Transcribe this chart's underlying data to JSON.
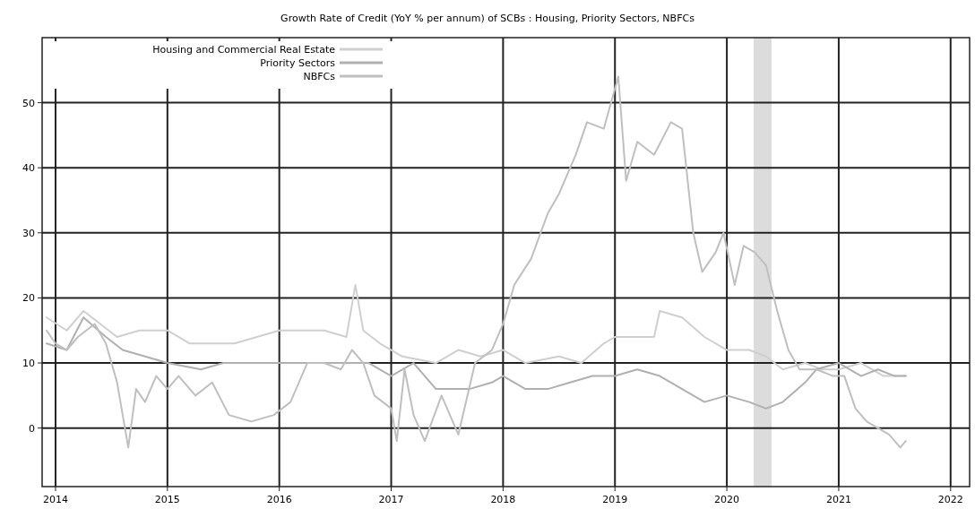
{
  "chart_data": {
    "type": "line",
    "title": "Growth Rate of Credit (YoY % per annum) of SCBs : Housing, Priority Sectors, NBFCs",
    "xlim": [
      2013.88,
      2022.17
    ],
    "xticks": [
      2014,
      2015,
      2016,
      2017,
      2018,
      2019,
      2020,
      2021,
      2022
    ],
    "ylim": [
      -9,
      60
    ],
    "yticks": [
      0,
      10,
      20,
      30,
      40,
      50
    ],
    "grid": true,
    "legend": "top left",
    "line_style": "solid",
    "bands": [
      {
        "axis": "x",
        "from": 2020.24,
        "to": 2020.4,
        "color": "#dcdcdc"
      }
    ],
    "series": [
      {
        "name": "Housing and Commercial Real Estate",
        "color": "#cfcfcf",
        "x": [
          2013.92,
          2014.1,
          2014.25,
          2014.4,
          2014.55,
          2014.75,
          2015.0,
          2015.2,
          2015.6,
          2015.8,
          2016.0,
          2016.4,
          2016.6,
          2016.68,
          2016.75,
          2016.9,
          2017.1,
          2017.4,
          2017.6,
          2017.8,
          2018.0,
          2018.2,
          2018.5,
          2018.7,
          2018.9,
          2019.0,
          2019.2,
          2019.35,
          2019.4,
          2019.6,
          2019.8,
          2020.0,
          2020.2,
          2020.35,
          2020.5,
          2020.7,
          2020.85,
          2021.0,
          2021.2,
          2021.4,
          2021.6
        ],
        "values": [
          17,
          15,
          18,
          16,
          14,
          15,
          15,
          13,
          13,
          14,
          15,
          15,
          14,
          22,
          15,
          13,
          11,
          10,
          12,
          11,
          12,
          10,
          11,
          10,
          13,
          14,
          14,
          14,
          18,
          17,
          14,
          12,
          12,
          11,
          9,
          10,
          9,
          9,
          10,
          8,
          8
        ]
      },
      {
        "name": "Priority Sectors",
        "color": "#b0b0b0",
        "x": [
          2013.92,
          2014.1,
          2014.25,
          2014.45,
          2014.6,
          2014.8,
          2015.0,
          2015.3,
          2015.5,
          2016.0,
          2016.5,
          2016.8,
          2017.0,
          2017.2,
          2017.4,
          2017.7,
          2017.9,
          2018.0,
          2018.2,
          2018.4,
          2018.6,
          2018.8,
          2019.0,
          2019.2,
          2019.4,
          2019.6,
          2019.8,
          2020.0,
          2020.2,
          2020.35,
          2020.5,
          2020.7,
          2020.8,
          2021.0,
          2021.2,
          2021.35,
          2021.5,
          2021.6
        ],
        "values": [
          13,
          12,
          17,
          14,
          12,
          11,
          10,
          9,
          10,
          10,
          10,
          10,
          8,
          10,
          6,
          6,
          7,
          8,
          6,
          6,
          7,
          8,
          8,
          9,
          8,
          6,
          4,
          5,
          4,
          3,
          4,
          7,
          9,
          10,
          8,
          9,
          8,
          8
        ]
      },
      {
        "name": "NBFCs",
        "color": "#bfbfbf",
        "x": [
          2013.92,
          2014.0,
          2014.1,
          2014.2,
          2014.35,
          2014.45,
          2014.55,
          2014.65,
          2014.72,
          2014.8,
          2014.9,
          2015.0,
          2015.1,
          2015.25,
          2015.4,
          2015.55,
          2015.75,
          2015.95,
          2016.1,
          2016.25,
          2016.4,
          2016.55,
          2016.65,
          2016.75,
          2016.85,
          2017.0,
          2017.05,
          2017.12,
          2017.2,
          2017.3,
          2017.45,
          2017.6,
          2017.75,
          2017.9,
          2018.0,
          2018.1,
          2018.25,
          2018.4,
          2018.5,
          2018.65,
          2018.75,
          2018.9,
          2019.03,
          2019.1,
          2019.2,
          2019.35,
          2019.5,
          2019.6,
          2019.7,
          2019.78,
          2019.9,
          2019.97,
          2020.07,
          2020.15,
          2020.25,
          2020.35,
          2020.45,
          2020.55,
          2020.65,
          2020.8,
          2020.95,
          2021.05,
          2021.15,
          2021.25,
          2021.35,
          2021.45,
          2021.55,
          2021.6
        ],
        "values": [
          15,
          13,
          12,
          14,
          16,
          13,
          7,
          -3,
          6,
          4,
          8,
          6,
          8,
          5,
          7,
          2,
          1,
          2,
          4,
          10,
          10,
          9,
          12,
          10,
          5,
          3,
          -2,
          9,
          2,
          -2,
          5,
          -1,
          10,
          12,
          16,
          22,
          26,
          33,
          36,
          42,
          47,
          46,
          54,
          38,
          44,
          42,
          47,
          46,
          30,
          24,
          27,
          30,
          22,
          28,
          27,
          25,
          18,
          12,
          9,
          9,
          8,
          8,
          3,
          1,
          0,
          -1,
          -3,
          -2
        ]
      }
    ]
  }
}
